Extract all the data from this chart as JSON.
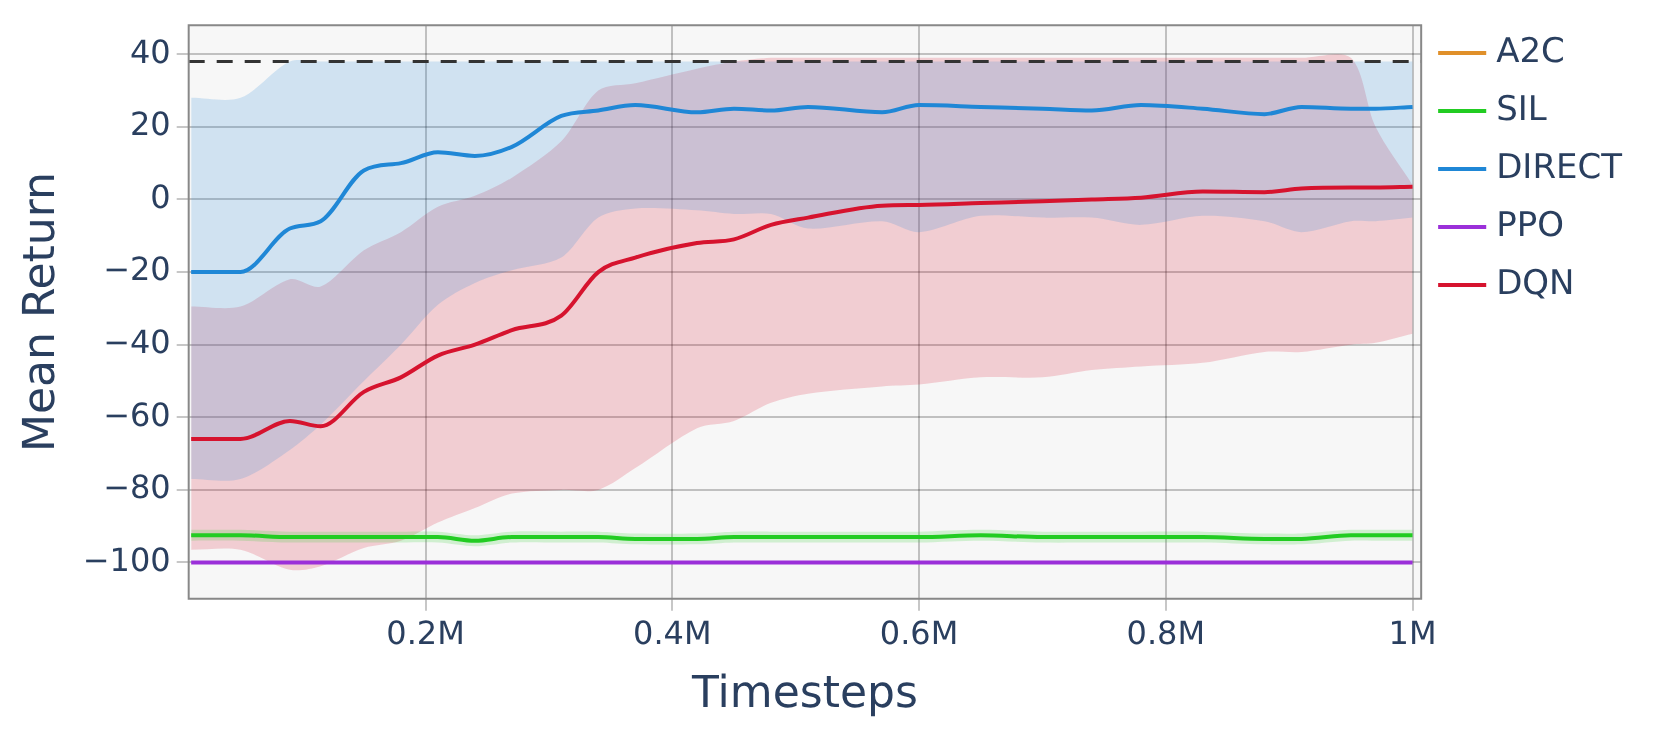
{
  "chart_data": {
    "type": "line",
    "xlabel": "Timesteps",
    "ylabel": "Mean Return",
    "x": [
      0.01,
      0.05,
      0.09,
      0.115,
      0.15,
      0.18,
      0.21,
      0.24,
      0.27,
      0.31,
      0.34,
      0.37,
      0.42,
      0.45,
      0.48,
      0.51,
      0.57,
      0.6,
      0.65,
      0.7,
      0.74,
      0.78,
      0.83,
      0.88,
      0.91,
      0.95,
      0.97,
      1.0
    ],
    "series": [
      {
        "name": "A2C",
        "color": "#e0902a",
        "values": [
          null,
          null,
          null,
          null,
          null,
          null,
          null,
          null,
          null,
          null,
          null,
          null,
          null,
          null,
          null,
          null,
          null,
          null,
          null,
          null,
          null,
          null,
          null,
          null,
          null,
          null,
          null,
          null
        ]
      },
      {
        "name": "SIL",
        "color": "#22cc22",
        "values": [
          -92.5,
          -92.5,
          -93,
          -93,
          -93,
          -93,
          -93,
          -94,
          -93,
          -93,
          -93,
          -93.5,
          -93.5,
          -93,
          -93,
          -93,
          -93,
          -93,
          -92.5,
          -93,
          -93,
          -93,
          -93,
          -93.5,
          -93.5,
          -92.5,
          -92.5,
          -92.5
        ],
        "lower": [
          -94,
          -94,
          -94.5,
          -94.5,
          -94.5,
          -94.5,
          -94.5,
          -95.5,
          -94.5,
          -94.5,
          -94.5,
          -95,
          -95,
          -94.5,
          -94.5,
          -94.5,
          -94.5,
          -94.5,
          -94,
          -94.5,
          -94.5,
          -94.5,
          -94.5,
          -95,
          -95,
          -94,
          -94,
          -94
        ],
        "upper": [
          -91,
          -91,
          -91.5,
          -91.5,
          -91.5,
          -91.5,
          -91.5,
          -92.5,
          -91.5,
          -91.5,
          -91.5,
          -92,
          -92,
          -91.5,
          -91.5,
          -91.5,
          -91.5,
          -91.5,
          -91,
          -91.5,
          -91.5,
          -91.5,
          -91.5,
          -92,
          -92,
          -91,
          -91,
          -91
        ]
      },
      {
        "name": "DIRECT",
        "color": "#1f87d6",
        "values": [
          -20,
          -20,
          -8,
          -6,
          8,
          10,
          13,
          12,
          14.5,
          23,
          24.5,
          26,
          24,
          25,
          24.5,
          25.5,
          24,
          26,
          25.5,
          25,
          24.5,
          26,
          25,
          23.5,
          25.5,
          25,
          25,
          25.5
        ],
        "lower": [
          -77,
          -77,
          -69,
          -62,
          -50,
          -40,
          -29,
          -23,
          -19.5,
          -16,
          -5,
          -2.5,
          -3,
          -4,
          -4,
          -8,
          -6,
          -9,
          -4.5,
          -5,
          -5,
          -7,
          -4.5,
          -6,
          -9,
          -6,
          -6,
          -5
        ],
        "upper": [
          28,
          28,
          38,
          38,
          38,
          38,
          38,
          38,
          38,
          38,
          38,
          38,
          38,
          38,
          38,
          38,
          38,
          38,
          38,
          38,
          38,
          38,
          38,
          38,
          38,
          38,
          38,
          38
        ]
      },
      {
        "name": "PPO",
        "color": "#9b30d9",
        "values": [
          -100,
          -100,
          -100,
          -100,
          -100,
          -100,
          -100,
          -100,
          -100,
          -100,
          -100,
          -100,
          -100,
          -100,
          -100,
          -100,
          -100,
          -100,
          -100,
          -100,
          -100,
          -100,
          -100,
          -100,
          -100,
          -100,
          -100,
          -100
        ]
      },
      {
        "name": "DQN",
        "color": "#d6132e",
        "values": [
          -66,
          -66,
          -61,
          -62.5,
          -53,
          -49,
          -43,
          -40,
          -36,
          -32,
          -20,
          -16,
          -12,
          -11,
          -7,
          -5,
          -1.7,
          -1.5,
          -1,
          -0.5,
          0,
          0.5,
          2.2,
          2,
          3,
          3.3,
          3.3,
          3.5
        ],
        "lower": [
          -96.5,
          -96.5,
          -102,
          -101,
          -96,
          -94,
          -89,
          -85,
          -81,
          -80,
          -80,
          -74,
          -63,
          -61,
          -56,
          -53.5,
          -51.5,
          -51,
          -49,
          -49,
          -47,
          -46,
          -45,
          -42,
          -42,
          -40,
          -39.5,
          -37
        ],
        "upper": [
          -29.5,
          -29.5,
          -22,
          -24,
          -14,
          -9,
          -2,
          1,
          6,
          16,
          30,
          32,
          36,
          38,
          39,
          39,
          39,
          39,
          39,
          39,
          39,
          39,
          39,
          39,
          39,
          39,
          20,
          4
        ]
      }
    ],
    "xlim": [
      0.008,
      1.007
    ],
    "xticks": [
      {
        "value": 0.2,
        "label": "0.2M"
      },
      {
        "value": 0.4,
        "label": "0.4M"
      },
      {
        "value": 0.6,
        "label": "0.6M"
      },
      {
        "value": 0.8,
        "label": "0.8M"
      },
      {
        "value": 1.0,
        "label": "1M"
      }
    ],
    "ylim": [
      -110,
      48
    ],
    "yticks": [
      -100,
      -80,
      -60,
      -40,
      -20,
      0,
      20,
      40
    ],
    "ref_lines": [
      {
        "axis": "y",
        "value": 38,
        "color": "#333333",
        "line_style": "dashed"
      }
    ],
    "grid": true,
    "legend": "right",
    "marker": "none",
    "line_style": "solid"
  }
}
